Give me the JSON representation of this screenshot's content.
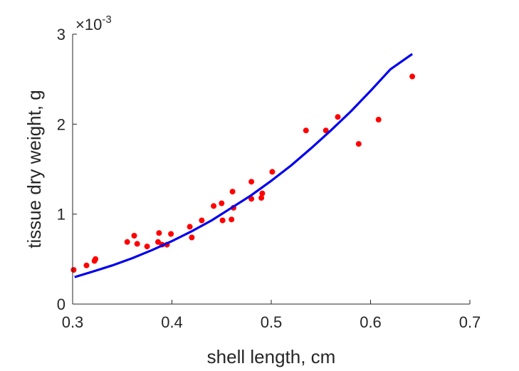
{
  "chart_data": {
    "type": "scatter",
    "xlabel": "shell length, cm",
    "ylabel": "tissue dry weight, g",
    "xlim": [
      0.3,
      0.7
    ],
    "ylim": [
      0,
      3
    ],
    "xticks": [
      0.3,
      0.4,
      0.5,
      0.6,
      0.7
    ],
    "yticks": [
      0,
      1,
      2,
      3
    ],
    "xtick_labels": [
      "0.3",
      "0.4",
      "0.5",
      "0.6",
      "0.7"
    ],
    "ytick_labels": [
      "0",
      "1",
      "2",
      "3"
    ],
    "y_multiplier": {
      "base": "×10",
      "exponent": "-3"
    },
    "grid": false,
    "legend": "none",
    "series": [
      {
        "kind": "points",
        "color": "#ff0000",
        "points": [
          [
            0.301,
            0.38
          ],
          [
            0.314,
            0.43
          ],
          [
            0.322,
            0.48
          ],
          [
            0.323,
            0.5
          ],
          [
            0.355,
            0.69
          ],
          [
            0.362,
            0.76
          ],
          [
            0.365,
            0.67
          ],
          [
            0.375,
            0.64
          ],
          [
            0.386,
            0.69
          ],
          [
            0.387,
            0.79
          ],
          [
            0.39,
            0.66
          ],
          [
            0.395,
            0.66
          ],
          [
            0.399,
            0.78
          ],
          [
            0.418,
            0.86
          ],
          [
            0.42,
            0.74
          ],
          [
            0.43,
            0.93
          ],
          [
            0.442,
            1.09
          ],
          [
            0.45,
            1.12
          ],
          [
            0.451,
            0.93
          ],
          [
            0.46,
            0.94
          ],
          [
            0.461,
            1.25
          ],
          [
            0.462,
            1.07
          ],
          [
            0.48,
            1.36
          ],
          [
            0.48,
            1.17
          ],
          [
            0.49,
            1.18
          ],
          [
            0.491,
            1.23
          ],
          [
            0.501,
            1.47
          ],
          [
            0.535,
            1.93
          ],
          [
            0.555,
            1.93
          ],
          [
            0.567,
            2.08
          ],
          [
            0.588,
            1.78
          ],
          [
            0.608,
            2.05
          ],
          [
            0.642,
            2.53
          ]
        ]
      },
      {
        "kind": "curve",
        "color": "#0000ee",
        "x": [
          0.302,
          0.32,
          0.34,
          0.36,
          0.38,
          0.4,
          0.42,
          0.44,
          0.46,
          0.48,
          0.5,
          0.52,
          0.54,
          0.56,
          0.58,
          0.6,
          0.62,
          0.642
        ],
        "y": [
          0.3,
          0.36,
          0.43,
          0.51,
          0.6,
          0.7,
          0.81,
          0.93,
          1.07,
          1.21,
          1.37,
          1.54,
          1.73,
          1.93,
          2.14,
          2.37,
          2.61,
          2.78
        ]
      }
    ]
  }
}
